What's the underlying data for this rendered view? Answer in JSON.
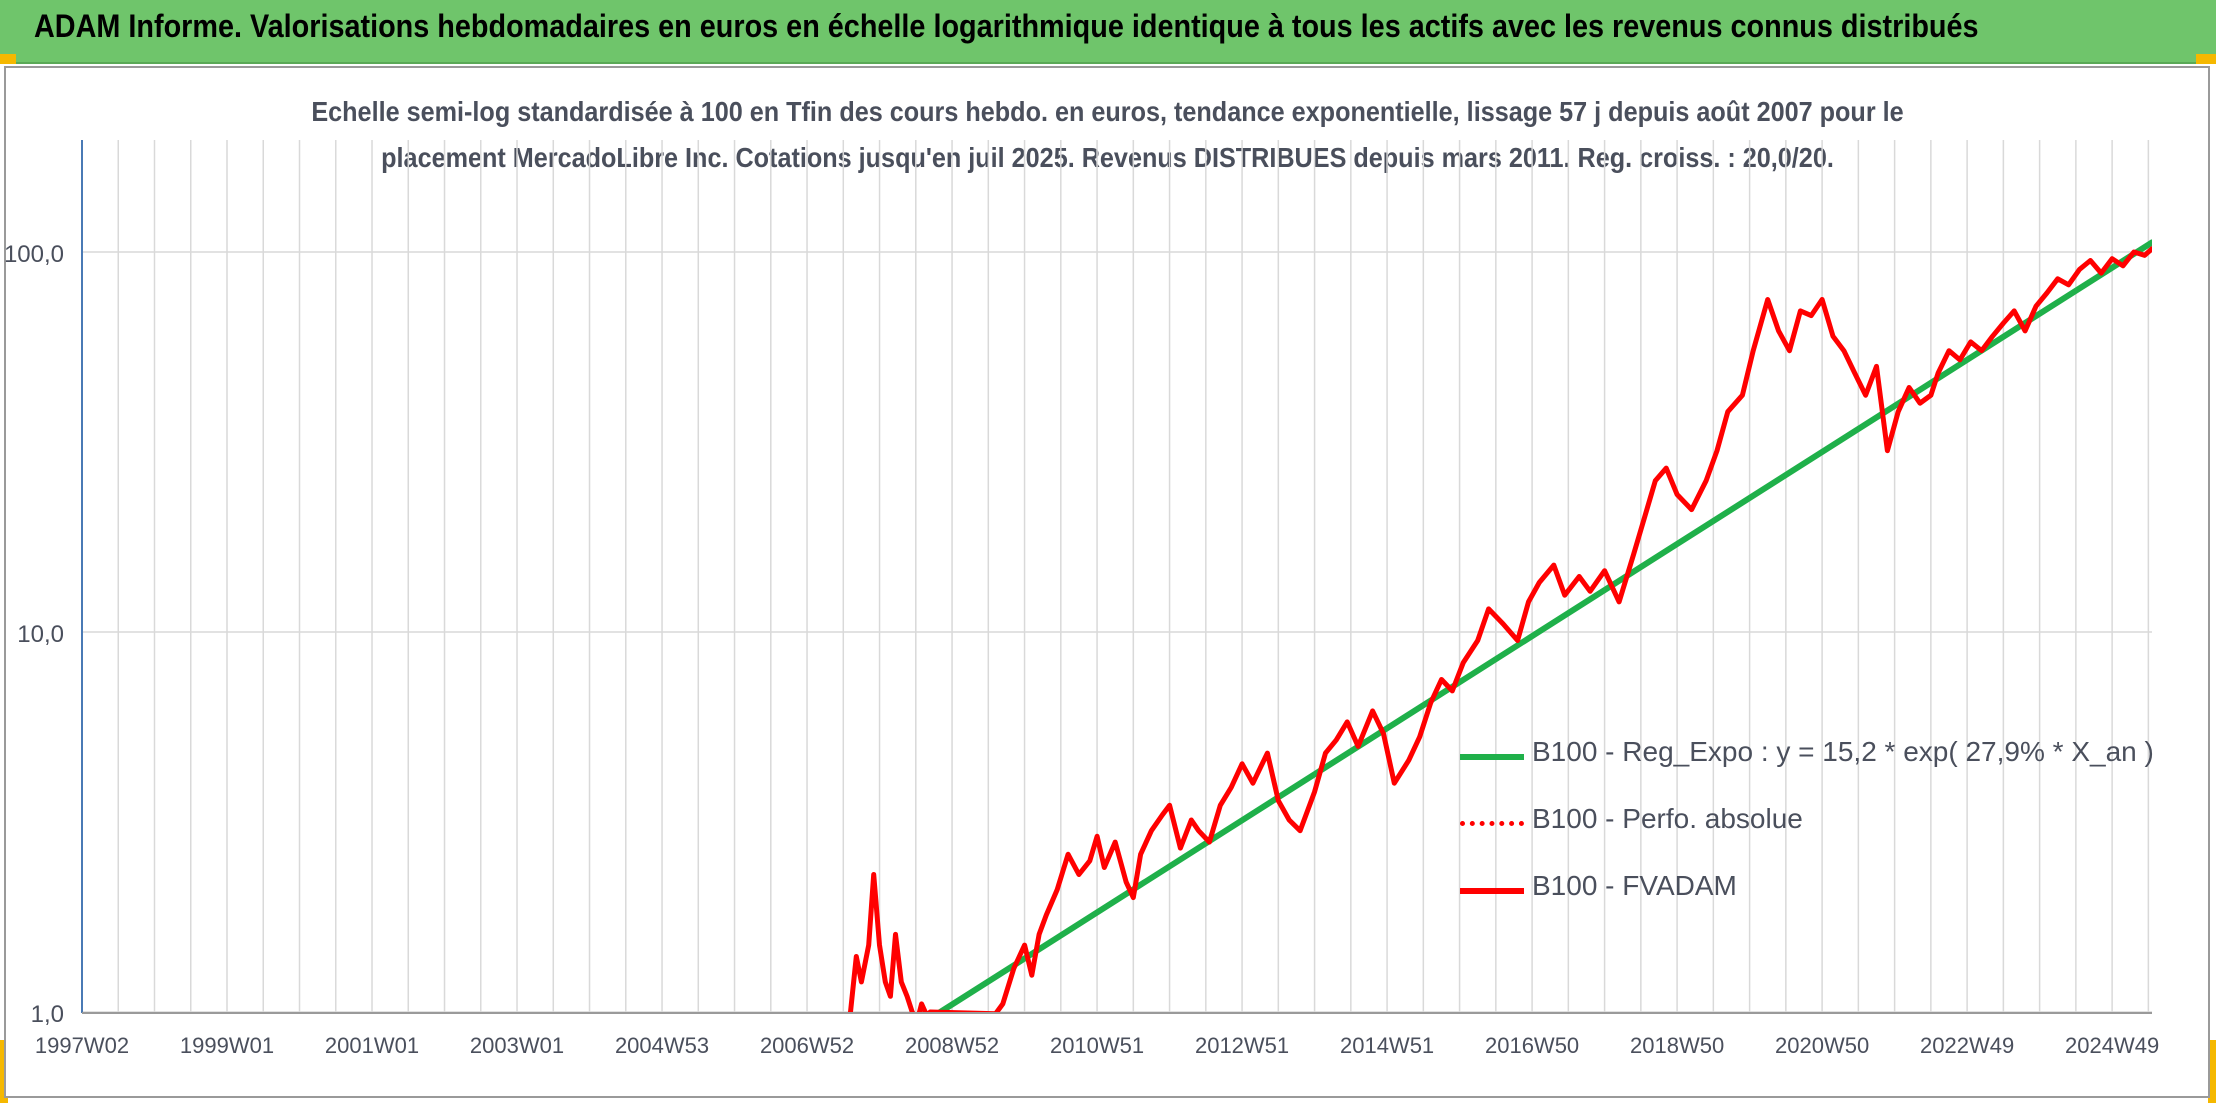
{
  "title": "ADAM Informe. Valorisations hebdomadaires en euros en échelle logarithmique identique à tous les actifs avec les revenus connus distribués",
  "colors": {
    "header_bg": "#6fc56b",
    "corner_accent": "#f5b800",
    "trend": "#1fb04a",
    "fvadam": "#ff0000",
    "perf": "#ff0000",
    "grid": "#d9d9d9",
    "axis": "#4a7ab5"
  },
  "chart_data": {
    "type": "line",
    "subtitle": [
      "Echelle semi-log standardisée à 100 en Tfin des cours hebdo. en euros, tendance exponentielle, lissage 57 j depuis août 2007 pour le",
      "placement MercadoLibre Inc. Cotations jusqu'en juil 2025. Revenus DISTRIBUES depuis mars 2011. Reg. croiss. : 20,0/20."
    ],
    "y_scale": "log",
    "ylim": [
      1,
      200
    ],
    "y_ticks": [
      {
        "value": 1,
        "label": "1,0"
      },
      {
        "value": 10,
        "label": "10,0"
      },
      {
        "value": 100,
        "label": "100,0"
      }
    ],
    "xlim": [
      1997.0,
      2025.55
    ],
    "x_ticks": [
      {
        "value": 1997.0,
        "label": "1997W02"
      },
      {
        "value": 1999.0,
        "label": "1999W01"
      },
      {
        "value": 2001.0,
        "label": "2001W01"
      },
      {
        "value": 2003.0,
        "label": "2003W01"
      },
      {
        "value": 2005.0,
        "label": "2004W53"
      },
      {
        "value": 2007.0,
        "label": "2006W52"
      },
      {
        "value": 2009.0,
        "label": "2008W52"
      },
      {
        "value": 2011.0,
        "label": "2010W51"
      },
      {
        "value": 2013.0,
        "label": "2012W51"
      },
      {
        "value": 2015.0,
        "label": "2014W51"
      },
      {
        "value": 2017.0,
        "label": "2016W50"
      },
      {
        "value": 2019.0,
        "label": "2018W50"
      },
      {
        "value": 2021.0,
        "label": "2020W50"
      },
      {
        "value": 2023.0,
        "label": "2022W49"
      },
      {
        "value": 2025.0,
        "label": "2024W49"
      }
    ],
    "grid": true,
    "legend_position": "right",
    "series": [
      {
        "name": "B100 - Reg_Expo : y = 15,2 * exp( 27,9% *  X_an )",
        "style": "solid",
        "color": "#1fb04a",
        "x": [
          2008.8,
          2025.55
        ],
        "y": [
          0.99,
          106
        ]
      },
      {
        "name": "B100 - Perfo. absolue",
        "style": "dotted",
        "color": "#ff0000",
        "x": [],
        "y": []
      },
      {
        "name": "B100 - FVADAM",
        "style": "solid",
        "color": "#ff0000",
        "x": [
          2007.6,
          2007.68,
          2007.75,
          2007.85,
          2007.92,
          2008.0,
          2008.08,
          2008.15,
          2008.22,
          2008.3,
          2008.38,
          2008.45,
          2008.52,
          2008.58,
          2008.65,
          2008.7,
          2009.6,
          2009.7,
          2009.85,
          2010.0,
          2010.1,
          2010.2,
          2010.3,
          2010.45,
          2010.6,
          2010.75,
          2010.9,
          2011.0,
          2011.1,
          2011.25,
          2011.4,
          2011.5,
          2011.6,
          2011.75,
          2011.9,
          2012.0,
          2012.15,
          2012.3,
          2012.4,
          2012.55,
          2012.7,
          2012.85,
          2013.0,
          2013.15,
          2013.35,
          2013.5,
          2013.65,
          2013.8,
          2014.0,
          2014.15,
          2014.3,
          2014.45,
          2014.6,
          2014.8,
          2014.95,
          2015.1,
          2015.3,
          2015.45,
          2015.6,
          2015.75,
          2015.9,
          2016.05,
          2016.25,
          2016.4,
          2016.6,
          2016.8,
          2016.95,
          2017.1,
          2017.3,
          2017.45,
          2017.65,
          2017.8,
          2018.0,
          2018.2,
          2018.4,
          2018.55,
          2018.7,
          2018.85,
          2019.0,
          2019.2,
          2019.4,
          2019.55,
          2019.7,
          2019.9,
          2020.05,
          2020.25,
          2020.4,
          2020.55,
          2020.7,
          2020.85,
          2021.0,
          2021.15,
          2021.3,
          2021.45,
          2021.6,
          2021.75,
          2021.9,
          2022.05,
          2022.2,
          2022.35,
          2022.5,
          2022.6,
          2022.75,
          2022.9,
          2023.05,
          2023.2,
          2023.35,
          2023.5,
          2023.65,
          2023.8,
          2023.95,
          2024.1,
          2024.25,
          2024.4,
          2024.55,
          2024.7,
          2024.85,
          2025.0,
          2025.15,
          2025.3,
          2025.45,
          2025.55
        ],
        "y": [
          1.0,
          1.4,
          1.2,
          1.5,
          2.3,
          1.5,
          1.2,
          1.1,
          1.6,
          1.2,
          1.1,
          1.0,
          0.95,
          1.05,
          0.98,
          1.0,
          0.99,
          1.05,
          1.3,
          1.5,
          1.25,
          1.6,
          1.8,
          2.1,
          2.6,
          2.3,
          2.5,
          2.9,
          2.4,
          2.8,
          2.2,
          2.0,
          2.6,
          3.0,
          3.3,
          3.5,
          2.7,
          3.2,
          3.0,
          2.8,
          3.5,
          3.9,
          4.5,
          4.0,
          4.8,
          3.6,
          3.2,
          3.0,
          3.8,
          4.8,
          5.2,
          5.8,
          5.0,
          6.2,
          5.4,
          4.0,
          4.6,
          5.3,
          6.5,
          7.5,
          7.0,
          8.3,
          9.5,
          11.5,
          10.5,
          9.5,
          12.0,
          13.5,
          15.0,
          12.5,
          14.0,
          12.8,
          14.5,
          12.0,
          16.0,
          20.0,
          25.0,
          27.0,
          23.0,
          21.0,
          25.0,
          30.0,
          38.0,
          42.0,
          55.0,
          75.0,
          62.0,
          55.0,
          70.0,
          68.0,
          75.0,
          60.0,
          55.0,
          48.0,
          42.0,
          50.0,
          30.0,
          38.0,
          44.0,
          40.0,
          42.0,
          48.0,
          55.0,
          52.0,
          58.0,
          55.0,
          60.0,
          65.0,
          70.0,
          62.0,
          72.0,
          78.0,
          85.0,
          82.0,
          90.0,
          95.0,
          88.0,
          96.0,
          92.0,
          100.0,
          98.0,
          102.0
        ]
      }
    ]
  }
}
